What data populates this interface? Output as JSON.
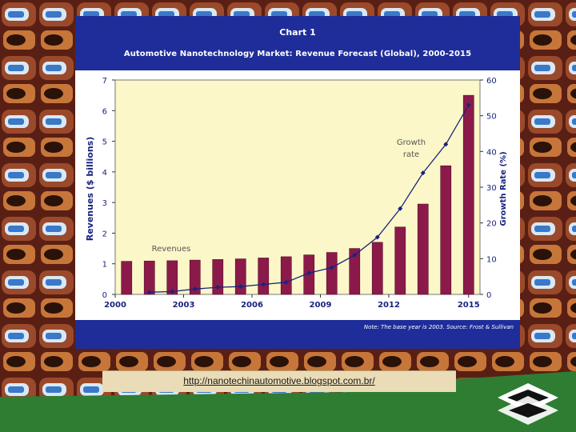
{
  "slide": {
    "link_text": "http://nanotechinautomotive.blogspot.com.br/"
  },
  "chart_data": {
    "type": "bar",
    "chart_number": "Chart 1",
    "title": "Automotive Nanotechnology Market: Revenue Forecast (Global), 2000-2015",
    "note": "Note: The base year is 2003. Source: Frost & Sullivan",
    "categories": [
      "2000",
      "2001",
      "2002",
      "2003",
      "2004",
      "2005",
      "2006",
      "2007",
      "2008",
      "2009",
      "2010",
      "2011",
      "2012",
      "2013",
      "2014",
      "2015"
    ],
    "xticks": [
      "2000",
      "2003",
      "2006",
      "2009",
      "2012",
      "2015"
    ],
    "ylabel": "Revenues ($ billions)",
    "ylabel_right": "Growth Rate (%)",
    "ylim": [
      0,
      7
    ],
    "ylim_right": [
      0,
      60
    ],
    "yticks": [
      0,
      1,
      2,
      3,
      4,
      5,
      6,
      7
    ],
    "yticks_right": [
      0,
      10,
      20,
      30,
      40,
      50,
      60
    ],
    "grid": false,
    "series": [
      {
        "name": "Revenues",
        "type": "bar",
        "axis": "left",
        "color": "#8b1a4a",
        "values": [
          1.08,
          1.09,
          1.1,
          1.12,
          1.14,
          1.16,
          1.19,
          1.23,
          1.29,
          1.37,
          1.5,
          1.7,
          2.2,
          2.95,
          4.2,
          6.5
        ]
      },
      {
        "name": "Growth rate",
        "type": "line",
        "axis": "right",
        "color": "#1a237e",
        "values": [
          null,
          0.6,
          0.8,
          1.5,
          2.0,
          2.2,
          2.8,
          3.4,
          6.0,
          7.5,
          11.0,
          16.0,
          24.0,
          34.0,
          42.0,
          53.0
        ]
      }
    ]
  },
  "colors": {
    "slide_bg": "#1f2d9a",
    "plot_bg": "#fbf7c8",
    "bar": "#8b1a4a",
    "line": "#1a237e",
    "footer_green": "#2e7d32"
  }
}
